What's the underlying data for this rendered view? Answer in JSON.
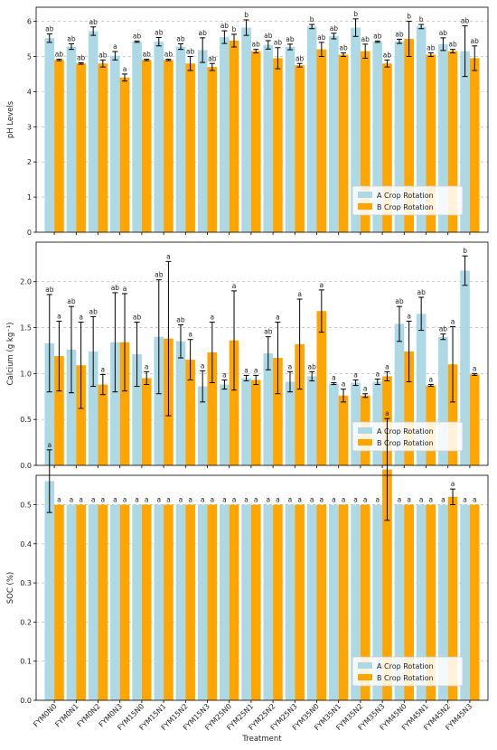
{
  "colors": {
    "a": "#add8e6",
    "b": "#ffa500",
    "error": "#000000",
    "grid": "#b0b0b0"
  },
  "chart_data": [
    {
      "type": "bar",
      "ylabel": "pH Levels",
      "xlabel": "",
      "ylim": [
        0,
        6.4
      ],
      "yticks": [
        0,
        1,
        2,
        3,
        4,
        5,
        6
      ],
      "ytick_labels": [
        "0",
        "1",
        "2",
        "3",
        "4",
        "5",
        "6"
      ],
      "grid": "horizontal dashed",
      "legend_position": "center-right",
      "show_x_tick_labels": false,
      "categories": [
        "FYM0N0",
        "FYM0N1",
        "FYM0N2",
        "FYM0N3",
        "FYM15N0",
        "FYM15N1",
        "FYM15N2",
        "FYM15N3",
        "FYM25N0",
        "FYM25N1",
        "FYM25N2",
        "FYM25N3",
        "FYM35N0",
        "FYM35N1",
        "FYM35N2",
        "FYM35N3",
        "FYM45N0",
        "FYM45N1",
        "FYM45N2",
        "FYM45N3"
      ],
      "series": [
        {
          "name": "A Crop Rotation",
          "values": [
            5.52,
            5.28,
            5.72,
            5.02,
            5.42,
            5.42,
            5.28,
            5.18,
            5.55,
            5.82,
            5.33,
            5.27,
            5.85,
            5.58,
            5.82,
            5.42,
            5.43,
            5.85,
            5.35,
            5.15
          ],
          "errors": [
            0.12,
            0.08,
            0.12,
            0.12,
            0.02,
            0.12,
            0.08,
            0.35,
            0.18,
            0.22,
            0.12,
            0.08,
            0.06,
            0.08,
            0.25,
            0.02,
            0.06,
            0.06,
            0.18,
            0.72
          ],
          "labels": [
            "ab",
            "ab",
            "ab",
            "a",
            "ab",
            "ab",
            "ab",
            "ab",
            "ab",
            "b",
            "ab",
            "ab",
            "b",
            "ab",
            "b",
            "ab",
            "ab",
            "b",
            "ab",
            "ab"
          ]
        },
        {
          "name": "B Crop Rotation",
          "values": [
            4.9,
            4.8,
            4.8,
            4.4,
            4.9,
            4.9,
            4.8,
            4.7,
            5.45,
            5.15,
            4.95,
            4.75,
            5.2,
            5.05,
            5.15,
            4.8,
            5.5,
            5.05,
            5.15,
            4.95
          ],
          "errors": [
            0.02,
            0.02,
            0.1,
            0.1,
            0.02,
            0.02,
            0.2,
            0.1,
            0.18,
            0.05,
            0.3,
            0.05,
            0.2,
            0.05,
            0.2,
            0.1,
            0.5,
            0.05,
            0.05,
            0.35
          ],
          "labels": [
            "ab",
            "ab",
            "ab",
            "a",
            "ab",
            "ab",
            "ab",
            "ab",
            "b",
            "ab",
            "ab",
            "ab",
            "ab",
            "ab",
            "ab",
            "ab",
            "b",
            "ab",
            "ab",
            "ab"
          ]
        }
      ]
    },
    {
      "type": "bar",
      "ylabel": "Calcium (g kg⁻¹)",
      "xlabel": "",
      "ylim": [
        0,
        2.43
      ],
      "yticks": [
        0.0,
        0.5,
        1.0,
        1.5,
        2.0
      ],
      "ytick_labels": [
        "0.0",
        "0.5",
        "1.0",
        "1.5",
        "2.0"
      ],
      "grid": "horizontal dashed",
      "legend_position": "lower-right",
      "show_x_tick_labels": false,
      "categories": [
        "FYM0N0",
        "FYM0N1",
        "FYM0N2",
        "FYM0N3",
        "FYM15N0",
        "FYM15N1",
        "FYM15N2",
        "FYM15N3",
        "FYM25N0",
        "FYM25N1",
        "FYM25N2",
        "FYM25N3",
        "FYM35N0",
        "FYM35N1",
        "FYM35N2",
        "FYM35N3",
        "FYM45N0",
        "FYM45N1",
        "FYM45N2",
        "FYM45N3"
      ],
      "series": [
        {
          "name": "A Crop Rotation",
          "values": [
            1.33,
            1.26,
            1.24,
            1.34,
            1.21,
            1.4,
            1.35,
            0.86,
            0.88,
            0.95,
            1.22,
            0.91,
            0.97,
            0.89,
            0.9,
            0.91,
            1.54,
            1.65,
            1.4,
            2.12
          ],
          "errors": [
            0.53,
            0.47,
            0.38,
            0.54,
            0.35,
            0.62,
            0.18,
            0.17,
            0.05,
            0.03,
            0.18,
            0.11,
            0.05,
            0.01,
            0.03,
            0.03,
            0.19,
            0.18,
            0.03,
            0.16
          ],
          "labels": [
            "ab",
            "ab",
            "ab",
            "ab",
            "ab",
            "ab",
            "ab",
            "a",
            "a",
            "a",
            "ab",
            "a",
            "ab",
            "a",
            "a",
            "a",
            "ab",
            "ab",
            "ab",
            "b"
          ]
        },
        {
          "name": "B Crop Rotation",
          "values": [
            1.19,
            1.09,
            0.88,
            1.34,
            0.95,
            1.38,
            1.15,
            1.23,
            1.36,
            0.93,
            1.17,
            1.32,
            1.68,
            0.76,
            0.76,
            0.97,
            1.24,
            0.87,
            1.1,
            0.99
          ],
          "errors": [
            0.38,
            0.47,
            0.11,
            0.53,
            0.07,
            0.84,
            0.22,
            0.33,
            0.54,
            0.05,
            0.39,
            0.49,
            0.23,
            0.07,
            0.02,
            0.05,
            0.33,
            0.01,
            0.41,
            0.01
          ],
          "labels": [
            "a",
            "a",
            "a",
            "a",
            "a",
            "a",
            "a",
            "a",
            "a",
            "a",
            "a",
            "a",
            "a",
            "a",
            "a",
            "a",
            "a",
            "a",
            "a",
            "a"
          ]
        }
      ]
    },
    {
      "type": "bar",
      "ylabel": "SOC (%)",
      "xlabel": "Treatment",
      "ylim": [
        0,
        0.575
      ],
      "yticks": [
        0.0,
        0.1,
        0.2,
        0.3,
        0.4,
        0.5
      ],
      "ytick_labels": [
        "0.0",
        "0.1",
        "0.2",
        "0.3",
        "0.4",
        "0.5"
      ],
      "grid": "horizontal dashed",
      "legend_position": "center-right",
      "show_x_tick_labels": true,
      "categories": [
        "FYM0N0",
        "FYM0N1",
        "FYM0N2",
        "FYM0N3",
        "FYM15N0",
        "FYM15N1",
        "FYM15N2",
        "FYM15N3",
        "FYM25N0",
        "FYM25N1",
        "FYM25N2",
        "FYM25N3",
        "FYM35N0",
        "FYM35N1",
        "FYM35N2",
        "FYM35N3",
        "FYM45N0",
        "FYM45N1",
        "FYM45N2",
        "FYM45N3"
      ],
      "series": [
        {
          "name": "A Crop Rotation",
          "values": [
            0.56,
            0.5,
            0.5,
            0.5,
            0.5,
            0.5,
            0.5,
            0.5,
            0.5,
            0.5,
            0.5,
            0.5,
            0.5,
            0.5,
            0.5,
            0.5,
            0.5,
            0.5,
            0.5,
            0.5
          ],
          "errors": [
            0.08,
            0,
            0,
            0,
            0,
            0,
            0,
            0,
            0,
            0,
            0,
            0,
            0,
            0,
            0,
            0,
            0,
            0,
            0,
            0
          ],
          "labels": [
            "a",
            "a",
            "a",
            "a",
            "a",
            "a",
            "a",
            "a",
            "a",
            "a",
            "a",
            "a",
            "a",
            "a",
            "a",
            "a",
            "a",
            "a",
            "a",
            "a"
          ]
        },
        {
          "name": "B Crop Rotation",
          "values": [
            0.5,
            0.5,
            0.5,
            0.5,
            0.5,
            0.5,
            0.5,
            0.5,
            0.5,
            0.5,
            0.5,
            0.5,
            0.5,
            0.5,
            0.5,
            0.59,
            0.5,
            0.5,
            0.52,
            0.5
          ],
          "errors": [
            0,
            0,
            0,
            0,
            0,
            0,
            0,
            0,
            0,
            0,
            0,
            0,
            0,
            0,
            0,
            0.13,
            0,
            0,
            0.02,
            0
          ],
          "labels": [
            "a",
            "a",
            "a",
            "a",
            "a",
            "a",
            "a",
            "a",
            "a",
            "a",
            "a",
            "a",
            "a",
            "a",
            "a",
            "a",
            "a",
            "a",
            "a",
            "a"
          ]
        }
      ]
    }
  ]
}
